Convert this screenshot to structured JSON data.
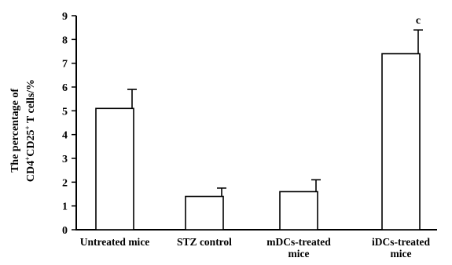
{
  "chart_data": {
    "type": "bar",
    "title": "",
    "xlabel": "",
    "ylabel_lines": [
      "The percentage of",
      "CD4+CD25+ T cells/%"
    ],
    "ylim": [
      0,
      9
    ],
    "yticks": [
      "0",
      "1",
      "2",
      "3",
      "4",
      "5",
      "6",
      "7",
      "8",
      "9"
    ],
    "categories": [
      [
        "Untreated mice"
      ],
      [
        "STZ control"
      ],
      [
        "mDCs-treated",
        "mice"
      ],
      [
        "iDCs-treated",
        "mice"
      ]
    ],
    "values": [
      5.1,
      1.4,
      1.6,
      7.4
    ],
    "errors": [
      0.8,
      0.35,
      0.5,
      1.0
    ],
    "annotations": [
      "",
      "",
      "",
      "c"
    ],
    "bar_fill": "#ffffff",
    "bar_stroke": "#000000",
    "grid": false
  }
}
